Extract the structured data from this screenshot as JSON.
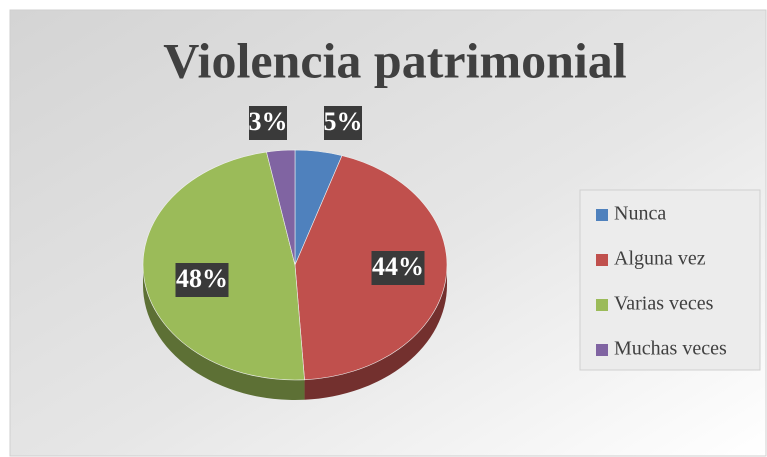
{
  "chart_data": {
    "type": "pie",
    "title": "Violencia patrimonial",
    "categories": [
      "Nunca",
      "Alguna vez",
      "Varias veces",
      "Muchas veces"
    ],
    "values": [
      5,
      44,
      48,
      3
    ],
    "value_labels": [
      "5%",
      "44%",
      "48%",
      "3%"
    ],
    "colors": [
      "#4f81bd",
      "#c0504d",
      "#9bbb59",
      "#8064a2"
    ],
    "legend": "right"
  }
}
